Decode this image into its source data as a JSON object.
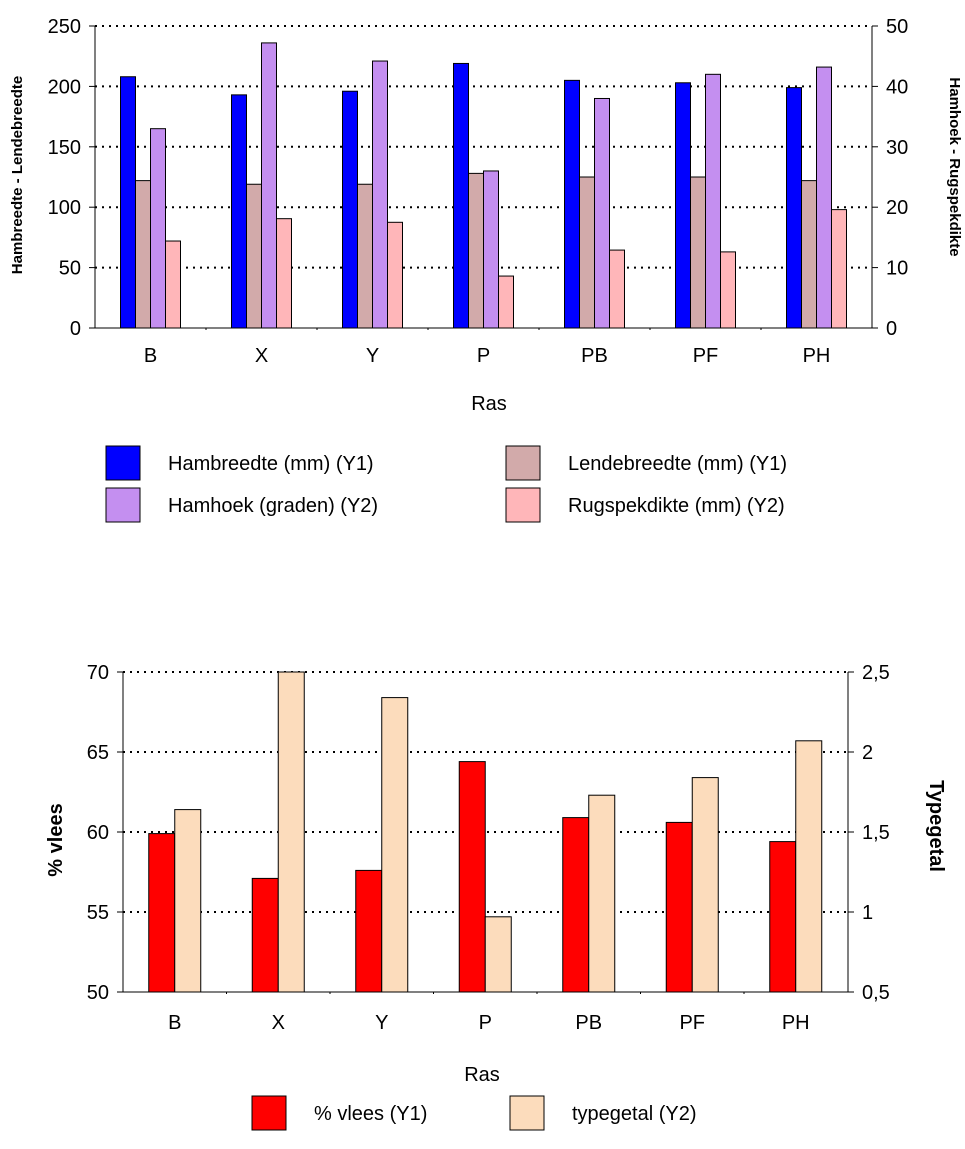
{
  "chart_data": [
    {
      "type": "bar",
      "categories": [
        "B",
        "X",
        "Y",
        "P",
        "PB",
        "PF",
        "PH"
      ],
      "xlabel": "Ras",
      "ylabel_left": "Hambreedte - Lendebreedte",
      "ylabel_right": "Hamhoek - Rugspekdikte",
      "ylim_left": [
        0,
        250
      ],
      "ylim_right": [
        0,
        50
      ],
      "yticks_left": [
        "0",
        "50",
        "100",
        "150",
        "200",
        "250"
      ],
      "yticks_right": [
        "0",
        "10",
        "20",
        "30",
        "40",
        "50"
      ],
      "grid": "horizontal dotted",
      "legend_position": "bottom",
      "series": [
        {
          "name": "Hambreedte (mm) (Y1)",
          "axis": "left",
          "color": "#0000ff",
          "values": [
            208,
            193,
            196,
            219,
            205,
            203,
            199
          ]
        },
        {
          "name": "Lendebreedte (mm) (Y1)",
          "axis": "left",
          "color": "#d2aaaa",
          "values": [
            122,
            119,
            119,
            128,
            125,
            125,
            122
          ]
        },
        {
          "name": "Hamhoek (graden) (Y2)",
          "axis": "right",
          "color": "#c48ff0",
          "values": [
            33,
            47.2,
            44.2,
            26,
            38,
            42,
            43.2
          ]
        },
        {
          "name": "Rugspekdikte (mm) (Y2)",
          "axis": "right",
          "color": "#ffb6b9",
          "values": [
            14.4,
            18.1,
            17.5,
            8.6,
            12.9,
            12.6,
            19.6
          ]
        }
      ]
    },
    {
      "type": "bar",
      "categories": [
        "B",
        "X",
        "Y",
        "P",
        "PB",
        "PF",
        "PH"
      ],
      "xlabel": "Ras",
      "ylabel_left": "% vlees",
      "ylabel_right": "Typegetal",
      "ylim_left": [
        50,
        70
      ],
      "ylim_right": [
        0.5,
        2.5
      ],
      "yticks_left": [
        "50",
        "55",
        "60",
        "65",
        "70"
      ],
      "yticks_right": [
        "0,5",
        "1",
        "1,5",
        "2",
        "2,5"
      ],
      "grid": "horizontal dotted",
      "legend_position": "bottom",
      "series": [
        {
          "name": "% vlees (Y1)",
          "axis": "left",
          "color": "#ff0000",
          "values": [
            59.9,
            57.1,
            57.6,
            64.4,
            60.9,
            60.6,
            59.4
          ]
        },
        {
          "name": "typegetal (Y2)",
          "axis": "right",
          "color": "#fcdcbc",
          "values": [
            1.64,
            2.5,
            2.34,
            0.97,
            1.73,
            1.84,
            2.07
          ]
        }
      ]
    }
  ]
}
